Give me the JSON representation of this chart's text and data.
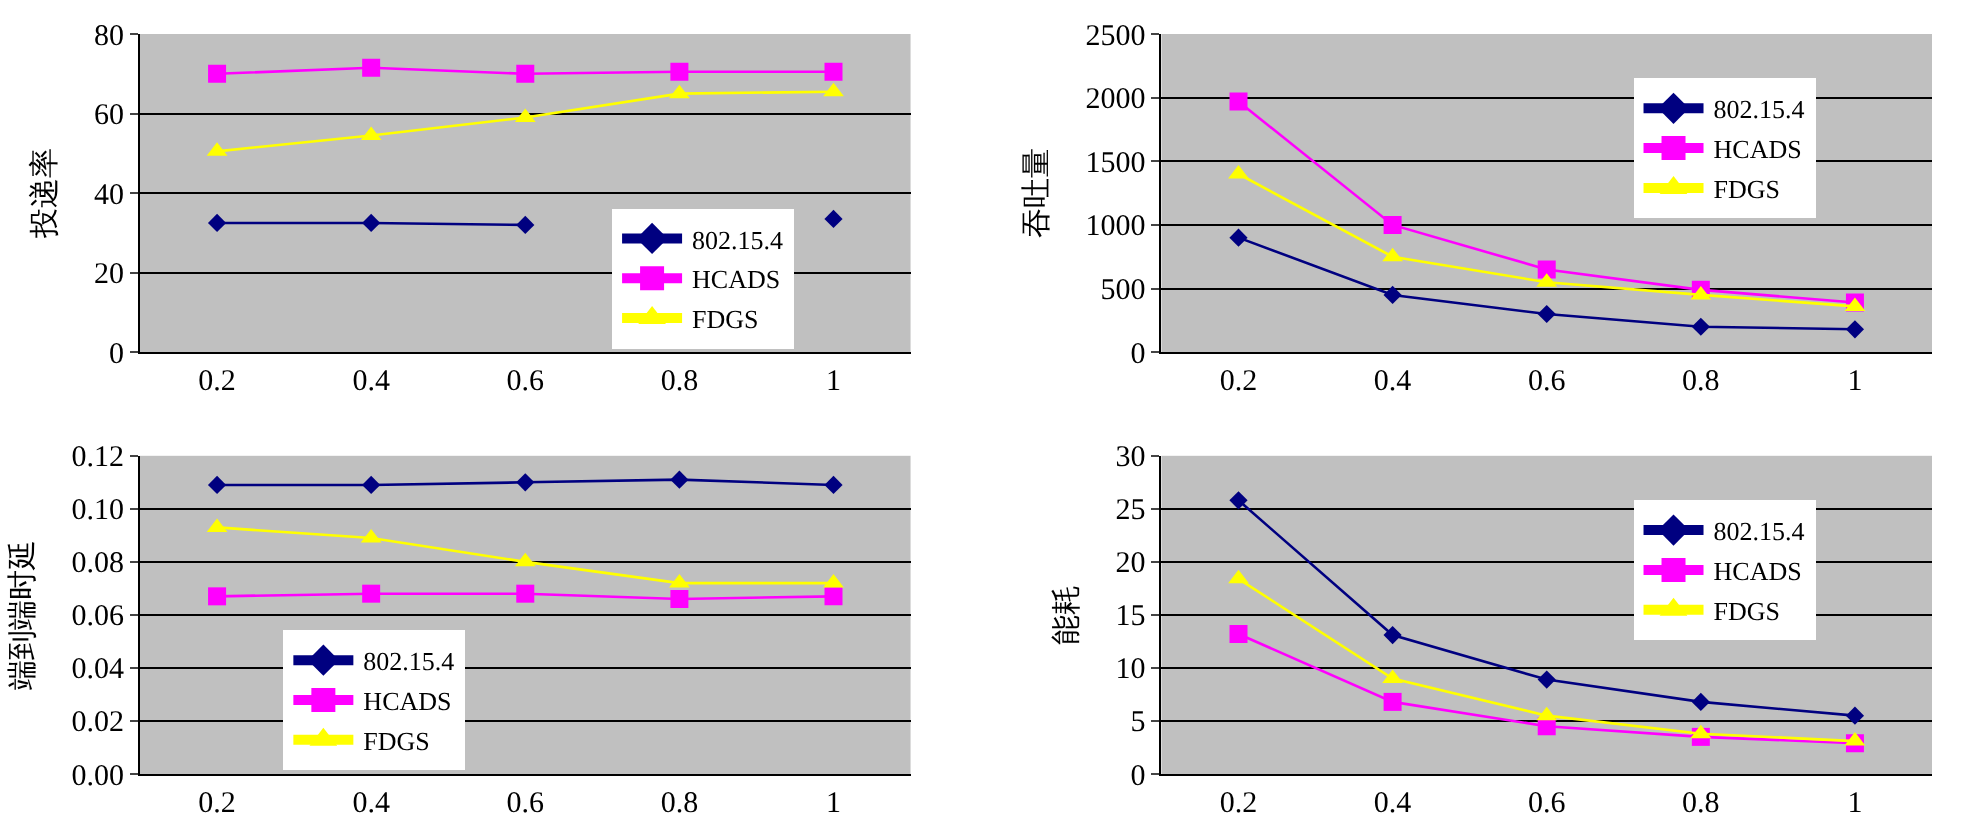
{
  "chart_data": [
    {
      "type": "line",
      "ylabel": "投递率",
      "categories": [
        "0.2",
        "0.4",
        "0.6",
        "0.8",
        "1"
      ],
      "ylim": [
        0,
        80
      ],
      "yticks": [
        0,
        20,
        40,
        60,
        80
      ],
      "grid": "y",
      "legend": "bottom right",
      "series": [
        {
          "name": "802.15.4",
          "color": "#000080",
          "marker": "diamond",
          "values": [
            32.5,
            32.5,
            32,
            null,
            33.5
          ]
        },
        {
          "name": "HCADS",
          "color": "#ff00ff",
          "marker": "square",
          "values": [
            70,
            71.5,
            70,
            70.5,
            70.5
          ]
        },
        {
          "name": "FDGS",
          "color": "#ffff00",
          "marker": "triangle",
          "values": [
            50.5,
            54.5,
            59,
            65,
            65.5
          ]
        }
      ]
    },
    {
      "type": "line",
      "ylabel": "吞吐量",
      "categories": [
        "0.2",
        "0.4",
        "0.6",
        "0.8",
        "1"
      ],
      "ylim": [
        0,
        2500
      ],
      "yticks": [
        0,
        500,
        1000,
        1500,
        2000,
        2500
      ],
      "grid": "y",
      "legend": "top right",
      "series": [
        {
          "name": "802.15.4",
          "color": "#000080",
          "marker": "diamond",
          "values": [
            900,
            450,
            300,
            200,
            180
          ]
        },
        {
          "name": "HCADS",
          "color": "#ff00ff",
          "marker": "square",
          "values": [
            1970,
            1000,
            650,
            490,
            390
          ]
        },
        {
          "name": "FDGS",
          "color": "#ffff00",
          "marker": "triangle",
          "values": [
            1400,
            750,
            550,
            450,
            360
          ]
        }
      ]
    },
    {
      "type": "line",
      "ylabel": "端到端时延",
      "categories": [
        "0.2",
        "0.4",
        "0.6",
        "0.8",
        "1"
      ],
      "ylim": [
        0,
        0.12
      ],
      "yticks": [
        {
          "value": 0,
          "label": "0.00"
        },
        0.02,
        0.04,
        0.06,
        0.08,
        {
          "value": 0.1,
          "label": "0.10"
        },
        0.12
      ],
      "grid": "y",
      "legend": "bottom left",
      "series": [
        {
          "name": "802.15.4",
          "color": "#000080",
          "marker": "diamond",
          "values": [
            0.109,
            0.109,
            0.11,
            0.111,
            0.109
          ]
        },
        {
          "name": "HCADS",
          "color": "#ff00ff",
          "marker": "square",
          "values": [
            0.067,
            0.068,
            0.068,
            0.066,
            0.067
          ]
        },
        {
          "name": "FDGS",
          "color": "#ffff00",
          "marker": "triangle",
          "values": [
            0.093,
            0.089,
            0.08,
            0.072,
            0.072
          ]
        }
      ]
    },
    {
      "type": "line",
      "ylabel": "能耗",
      "categories": [
        "0.2",
        "0.4",
        "0.6",
        "0.8",
        "1"
      ],
      "ylim": [
        0,
        30
      ],
      "yticks": [
        0,
        5,
        10,
        15,
        20,
        25,
        30
      ],
      "grid": "y",
      "legend": "top right",
      "series": [
        {
          "name": "802.15.4",
          "color": "#000080",
          "marker": "diamond",
          "values": [
            25.8,
            13.1,
            8.9,
            6.8,
            5.5
          ]
        },
        {
          "name": "HCADS",
          "color": "#ff00ff",
          "marker": "square",
          "values": [
            13.2,
            6.8,
            4.5,
            3.5,
            2.9
          ]
        },
        {
          "name": "FDGS",
          "color": "#ffff00",
          "marker": "triangle",
          "values": [
            18.4,
            9,
            5.5,
            3.8,
            3.1
          ]
        }
      ]
    }
  ]
}
